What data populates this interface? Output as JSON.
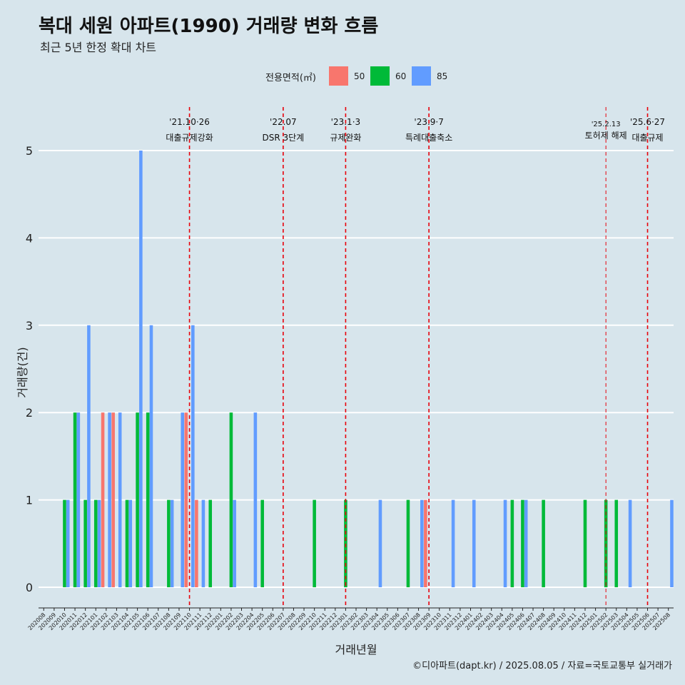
{
  "title": "복대 세원 아파트(1990) 거래량 변화 흐름",
  "subtitle": "최근 5년 한정 확대 차트",
  "caption": "©디아파트(dapt.kr) / 2025.08.05 / 자료=국토교통부 실거래가",
  "legend": {
    "title": "전용면적(㎡)",
    "items": [
      {
        "label": "50",
        "color": "#F8766D"
      },
      {
        "label": "60",
        "color": "#00BA38"
      },
      {
        "label": "85",
        "color": "#619CFF"
      }
    ]
  },
  "chart_data": {
    "type": "bar",
    "xlabel": "거래년월",
    "ylabel": "거래량(건)",
    "ylim": [
      0,
      5
    ],
    "yticks": [
      0,
      1,
      2,
      3,
      4,
      5
    ],
    "categories": [
      "202008",
      "202009",
      "202010",
      "202011",
      "202012",
      "202101",
      "202102",
      "202103",
      "202104",
      "202105",
      "202106",
      "202107",
      "202108",
      "202109",
      "202110",
      "202111",
      "202112",
      "202201",
      "202202",
      "202203",
      "202204",
      "202205",
      "202206",
      "202207",
      "202208",
      "202209",
      "202210",
      "202211",
      "202212",
      "202301",
      "202302",
      "202303",
      "202304",
      "202305",
      "202306",
      "202307",
      "202308",
      "202309",
      "202310",
      "202311",
      "202312",
      "202401",
      "202402",
      "202403",
      "202404",
      "202405",
      "202406",
      "202407",
      "202408",
      "202409",
      "202410",
      "202411",
      "202412",
      "202501",
      "202502",
      "202503",
      "202504",
      "202505",
      "202506",
      "202507",
      "202508"
    ],
    "series": [
      {
        "name": "50",
        "color": "#F8766D",
        "values": [
          0,
          0,
          0,
          0,
          0,
          0,
          2,
          2,
          0,
          0,
          0,
          0,
          0,
          0,
          2,
          1,
          0,
          0,
          0,
          0,
          0,
          0,
          0,
          0,
          0,
          0,
          0,
          0,
          0,
          0,
          0,
          0,
          0,
          0,
          0,
          0,
          0,
          1,
          0,
          0,
          0,
          0,
          0,
          0,
          0,
          0,
          0,
          0,
          0,
          0,
          0,
          0,
          0,
          0,
          0,
          0,
          0,
          0,
          0,
          0,
          0
        ]
      },
      {
        "name": "60",
        "color": "#00BA38",
        "values": [
          0,
          0,
          1,
          2,
          1,
          1,
          0,
          0,
          1,
          2,
          2,
          0,
          1,
          0,
          0,
          0,
          1,
          0,
          2,
          0,
          0,
          1,
          0,
          0,
          0,
          0,
          1,
          0,
          0,
          1,
          0,
          0,
          0,
          0,
          0,
          1,
          0,
          0,
          0,
          0,
          0,
          0,
          0,
          0,
          0,
          1,
          1,
          0,
          1,
          0,
          0,
          0,
          1,
          0,
          1,
          1,
          0,
          0,
          0,
          0,
          0
        ]
      },
      {
        "name": "85",
        "color": "#619CFF",
        "values": [
          0,
          0,
          1,
          2,
          3,
          1,
          2,
          2,
          1,
          5,
          3,
          0,
          1,
          2,
          3,
          1,
          0,
          0,
          1,
          0,
          2,
          0,
          0,
          0,
          0,
          0,
          0,
          0,
          0,
          0,
          0,
          0,
          1,
          0,
          0,
          0,
          1,
          0,
          0,
          1,
          0,
          1,
          0,
          0,
          1,
          0,
          1,
          0,
          0,
          0,
          0,
          0,
          0,
          0,
          0,
          0,
          1,
          0,
          0,
          0,
          1
        ]
      }
    ],
    "events": [
      {
        "x": "202110",
        "date": "'21.10·26",
        "label": "대출규제강화"
      },
      {
        "x": "202207",
        "date": "'22.07",
        "label": "DSR 3단계"
      },
      {
        "x": "202301",
        "date": "'23.1·3",
        "label": "규제완화"
      },
      {
        "x": "202309",
        "date": "'23.9·7",
        "label": "특례대출축소"
      },
      {
        "x": "202502",
        "date": "'25.2.13",
        "label": "토허제 해제"
      },
      {
        "x": "202506",
        "date": "'25.6·27",
        "label": "대출규제"
      }
    ],
    "grid": true,
    "legend_position": "top"
  }
}
